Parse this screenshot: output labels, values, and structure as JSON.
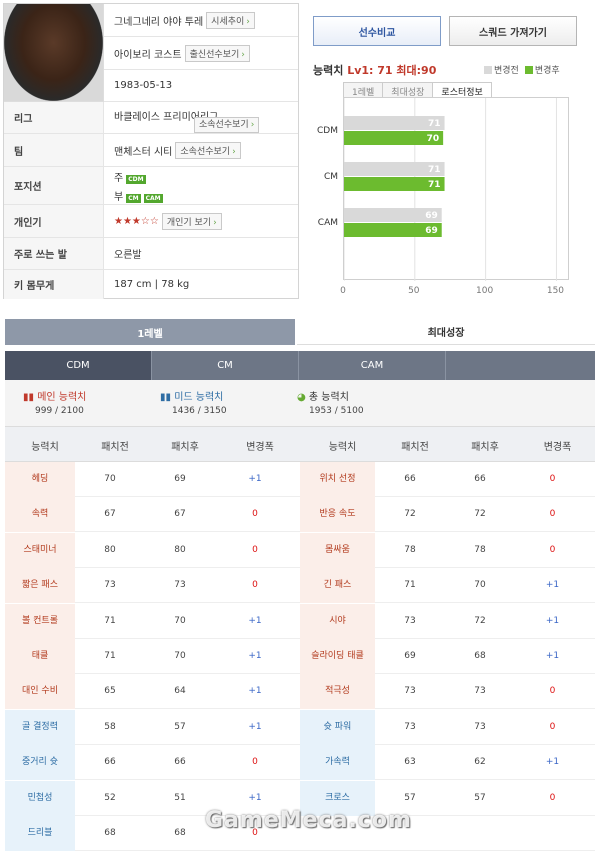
{
  "profile": {
    "name": "그네그네리 야야 투레",
    "name_btn": "시세추이",
    "nation": "아이보리 코스트",
    "nation_btn": "출신선수보기",
    "birth": "1983-05-13",
    "rows": [
      {
        "label": "리그",
        "value": "바클레이스 프리미어리그",
        "btn": "소속선수보기"
      },
      {
        "label": "팀",
        "value": "맨체스터 시티",
        "btn": "소속선수보기"
      },
      {
        "label": "포지션",
        "value": "",
        "btn": ""
      },
      {
        "label": "개인기",
        "value": "★★★☆☆",
        "btn": "개인기 보기"
      },
      {
        "label": "주로 쓰는 발",
        "value": "오른발",
        "btn": ""
      },
      {
        "label": "키 몸무게",
        "value": "187 cm | 78 kg",
        "btn": ""
      }
    ],
    "position_main_label": "주",
    "position_main": "CDM",
    "position_sub_label": "부",
    "position_subs": [
      "CM",
      "CAM"
    ]
  },
  "compare": {
    "compare_btn": "선수비교",
    "squad_btn": "스쿼드 가져가기",
    "ability_label": "능력치",
    "ability_value": "Lv1: 71 최대:90",
    "legend_before": "변경전",
    "legend_after": "변경후",
    "subtabs": [
      "1레벨",
      "최대성장",
      "로스터정보"
    ],
    "active_subtab": 2
  },
  "chart_data": {
    "type": "bar",
    "orientation": "horizontal",
    "categories": [
      "CDM",
      "CM",
      "CAM"
    ],
    "series": [
      {
        "name": "변경전",
        "values": [
          71,
          71,
          69
        ],
        "color": "#d9d9d9"
      },
      {
        "name": "변경후",
        "values": [
          70,
          71,
          69
        ],
        "color": "#6cbb2f"
      }
    ],
    "xlim": [
      0,
      150
    ],
    "xticks": [
      0,
      50,
      100,
      150
    ],
    "grid": true
  },
  "tabs": [
    "1레벨",
    "최대성장"
  ],
  "pos_tabs": [
    "CDM",
    "CM",
    "CAM",
    ""
  ],
  "summary": [
    {
      "title": "메인 능력치",
      "value": "999 / 2100",
      "icon": "bar-chart-icon",
      "color": "#c0392b"
    },
    {
      "title": "미드 능력치",
      "value": "1436 / 3150",
      "icon": "bar-chart-icon",
      "color": "#2e6da4"
    },
    {
      "title": "총 능력치",
      "value": "1953 / 5100",
      "icon": "pie-chart-icon",
      "color": "#6a3"
    }
  ],
  "table_headers": [
    "능력치",
    "패치전",
    "패치후",
    "변경폭",
    "능력치",
    "패치전",
    "패치후",
    "변경폭"
  ],
  "left_stats": [
    {
      "name": "헤딩",
      "before": "70",
      "after": "69",
      "diff": "+1",
      "group": "main"
    },
    {
      "name": "속력",
      "before": "67",
      "after": "67",
      "diff": "0",
      "group": "main"
    },
    {
      "name": "스태미너",
      "before": "80",
      "after": "80",
      "diff": "0",
      "group": "main"
    },
    {
      "name": "짧은 패스",
      "before": "73",
      "after": "73",
      "diff": "0",
      "group": "main"
    },
    {
      "name": "볼 컨트롤",
      "before": "71",
      "after": "70",
      "diff": "+1",
      "group": "main"
    },
    {
      "name": "태클",
      "before": "71",
      "after": "70",
      "diff": "+1",
      "group": "main"
    },
    {
      "name": "대인 수비",
      "before": "65",
      "after": "64",
      "diff": "+1",
      "group": "main"
    },
    {
      "name": "골 결정력",
      "before": "58",
      "after": "57",
      "diff": "+1",
      "group": "mid"
    },
    {
      "name": "중거리 슛",
      "before": "66",
      "after": "66",
      "diff": "0",
      "group": "mid"
    },
    {
      "name": "민첩성",
      "before": "52",
      "after": "51",
      "diff": "+1",
      "group": "mid"
    },
    {
      "name": "드리블",
      "before": "68",
      "after": "68",
      "diff": "0",
      "group": "mid"
    }
  ],
  "right_stats": [
    {
      "name": "위치 선정",
      "before": "66",
      "after": "66",
      "diff": "0",
      "group": "main"
    },
    {
      "name": "반응 속도",
      "before": "72",
      "after": "72",
      "diff": "0",
      "group": "main"
    },
    {
      "name": "몸싸움",
      "before": "78",
      "after": "78",
      "diff": "0",
      "group": "main"
    },
    {
      "name": "긴 패스",
      "before": "71",
      "after": "70",
      "diff": "+1",
      "group": "main"
    },
    {
      "name": "시야",
      "before": "73",
      "after": "72",
      "diff": "+1",
      "group": "main"
    },
    {
      "name": "슬라이딩 태클",
      "before": "69",
      "after": "68",
      "diff": "+1",
      "group": "main"
    },
    {
      "name": "적극성",
      "before": "73",
      "after": "73",
      "diff": "0",
      "group": "main"
    },
    {
      "name": "슛 파워",
      "before": "73",
      "after": "73",
      "diff": "0",
      "group": "mid"
    },
    {
      "name": "가속력",
      "before": "63",
      "after": "62",
      "diff": "+1",
      "group": "mid"
    },
    {
      "name": "크로스",
      "before": "57",
      "after": "57",
      "diff": "0",
      "group": "mid"
    }
  ],
  "watermark": "GameMeca.com"
}
